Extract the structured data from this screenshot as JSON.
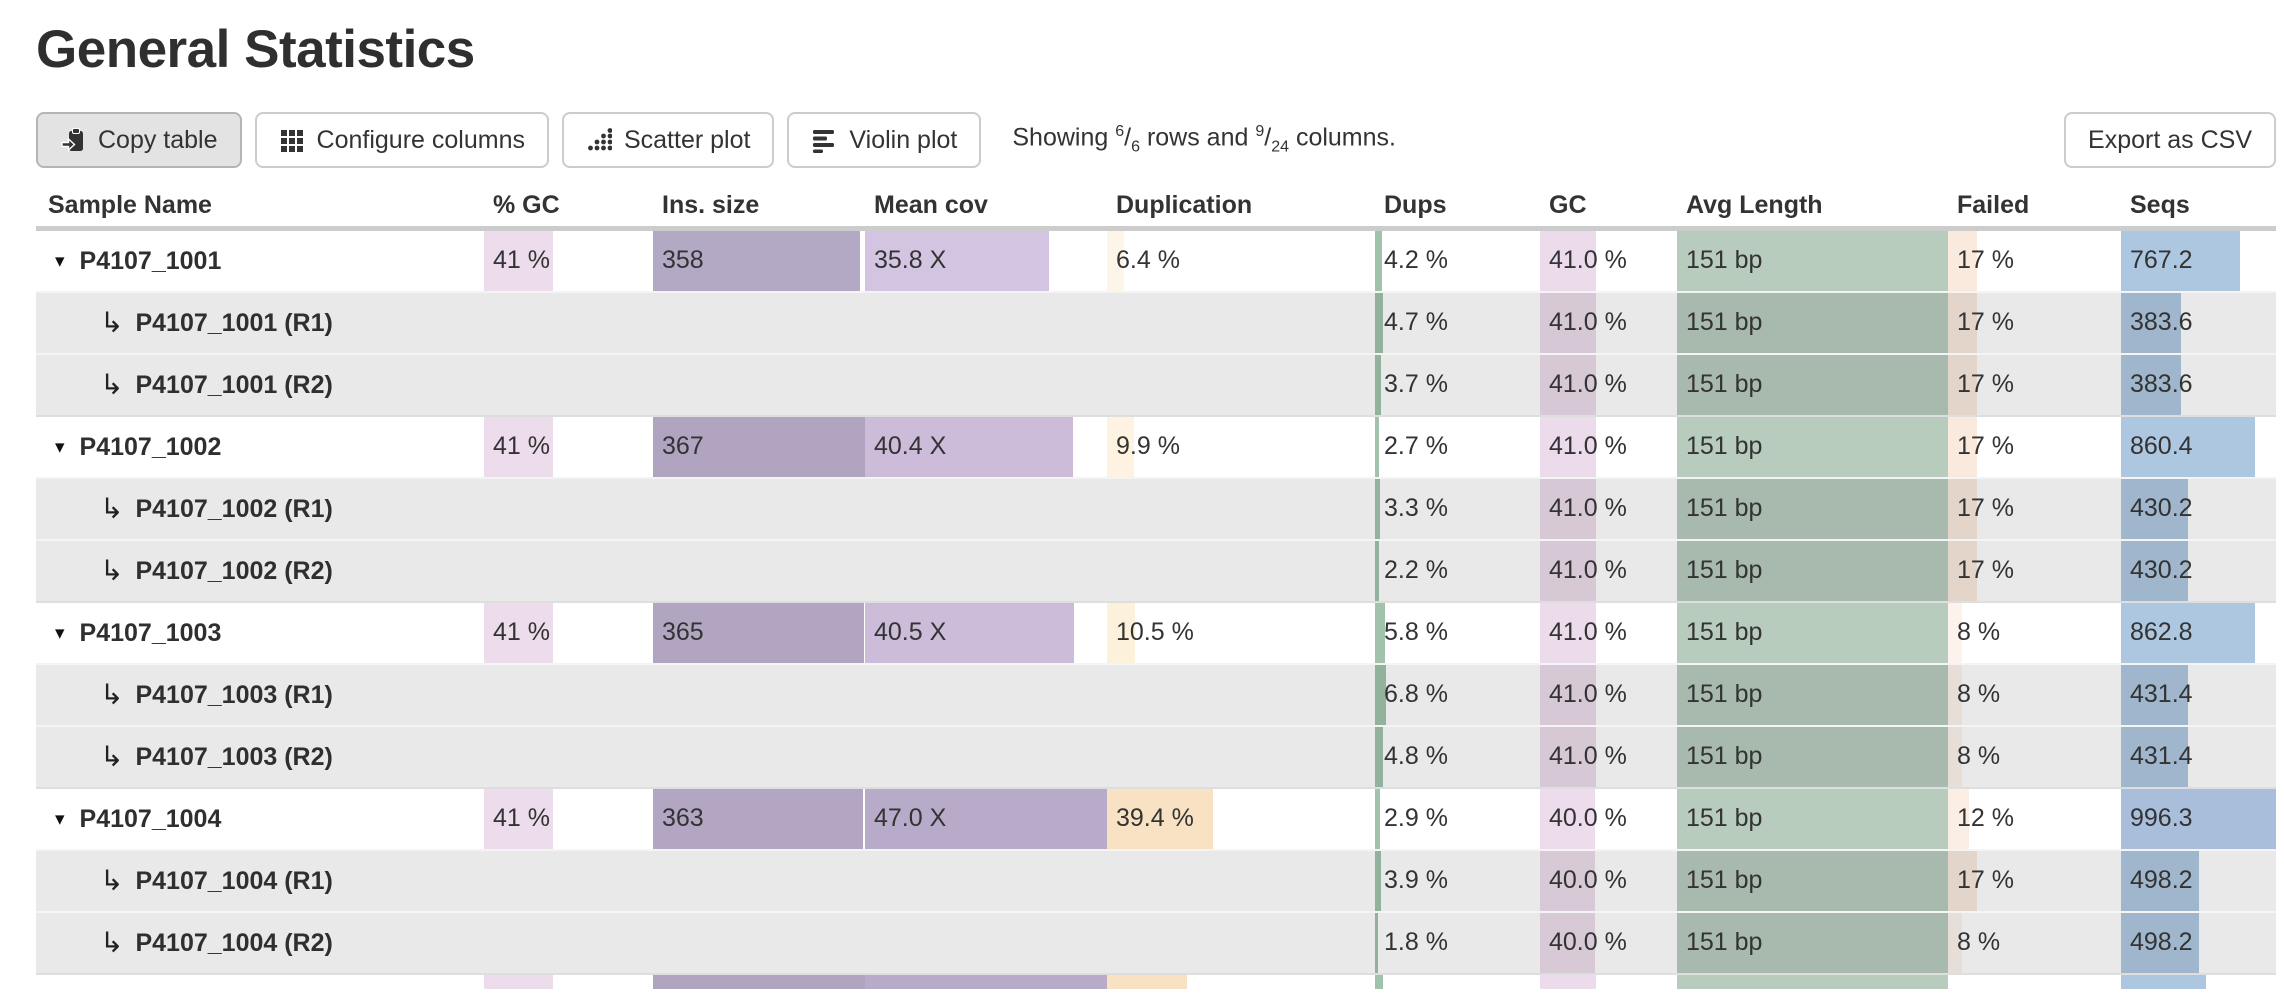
{
  "page": {
    "title": "General Statistics"
  },
  "toolbar": {
    "buttons": [
      {
        "id": "copy-table",
        "label": "Copy table",
        "icon": "clipboard-paste-icon",
        "active": true
      },
      {
        "id": "configure-columns",
        "label": "Configure columns",
        "icon": "grid-icon",
        "active": false
      },
      {
        "id": "scatter-plot",
        "label": "Scatter plot",
        "icon": "dot-chart-icon",
        "active": false
      },
      {
        "id": "violin-plot",
        "label": "Violin plot",
        "icon": "violin-bars-icon",
        "active": false
      }
    ],
    "export_label": "Export as CSV",
    "showing": {
      "prefix": "Showing ",
      "rows_shown": "6",
      "rows_total": "6",
      "mid": " rows and ",
      "cols_shown": "9",
      "cols_total": "24",
      "suffix": " columns."
    }
  },
  "table": {
    "columns": [
      {
        "key": "sample",
        "label": "Sample Name"
      },
      {
        "key": "pct_gc",
        "label": "% GC"
      },
      {
        "key": "ins_size",
        "label": "Ins. size"
      },
      {
        "key": "mean_cov",
        "label": "Mean cov"
      },
      {
        "key": "duplication",
        "label": "Duplication"
      },
      {
        "key": "dups",
        "label": "Dups"
      },
      {
        "key": "gc",
        "label": "GC"
      },
      {
        "key": "avg_length",
        "label": "Avg Length"
      },
      {
        "key": "failed",
        "label": "Failed"
      },
      {
        "key": "seqs",
        "label": "Seqs"
      }
    ],
    "rows": [
      {
        "name": "P4107_1001",
        "type": "main",
        "cells": [
          {
            "t": "41 %",
            "f": 0.41,
            "c": "#ecdcec"
          },
          {
            "t": "358",
            "f": 0.975,
            "c": "#b4a9c4"
          },
          {
            "t": "35.8 X",
            "f": 0.762,
            "c": "#d3c5e1"
          },
          {
            "t": "6.4 %",
            "f": 0.064,
            "c": "#fdf6e8"
          },
          {
            "t": "4.2 %",
            "f": 0.042,
            "c": "#a1c3ac"
          },
          {
            "t": "41.0 %",
            "f": 0.41,
            "c": "#ecdbeb"
          },
          {
            "t": "151 bp",
            "f": 1,
            "c": "#b7ccbd"
          },
          {
            "t": "17 %",
            "f": 0.17,
            "c": "#fae9dd"
          },
          {
            "t": "767.2",
            "f": 0.77,
            "c": "#aec7e1"
          }
        ]
      },
      {
        "name": "P4107_1001 (R1)",
        "type": "sub",
        "cells": [
          null,
          null,
          null,
          null,
          {
            "t": "4.7 %",
            "f": 0.047,
            "c": "#a1c3ac"
          },
          {
            "t": "41.0 %",
            "f": 0.41,
            "c": "#ecdbeb"
          },
          {
            "t": "151 bp",
            "f": 1,
            "c": "#b7ccbd"
          },
          {
            "t": "17 %",
            "f": 0.17,
            "c": "#fae9dd"
          },
          {
            "t": "383.6",
            "f": 0.385,
            "c": "#aec7e1"
          }
        ]
      },
      {
        "name": "P4107_1001 (R2)",
        "type": "sub",
        "cells": [
          null,
          null,
          null,
          null,
          {
            "t": "3.7 %",
            "f": 0.037,
            "c": "#a1c3ac"
          },
          {
            "t": "41.0 %",
            "f": 0.41,
            "c": "#ecdbeb"
          },
          {
            "t": "151 bp",
            "f": 1,
            "c": "#b7ccbd"
          },
          {
            "t": "17 %",
            "f": 0.17,
            "c": "#fae9dd"
          },
          {
            "t": "383.6",
            "f": 0.385,
            "c": "#aec7e1"
          }
        ]
      },
      {
        "name": "P4107_1002",
        "type": "main",
        "cells": [
          {
            "t": "41 %",
            "f": 0.41,
            "c": "#ecdcec"
          },
          {
            "t": "367",
            "f": 1,
            "c": "#b0a4c0"
          },
          {
            "t": "40.4 X",
            "f": 0.86,
            "c": "#ccbbd9"
          },
          {
            "t": "9.9 %",
            "f": 0.099,
            "c": "#fdf3e0"
          },
          {
            "t": "2.7 %",
            "f": 0.027,
            "c": "#a1c3ac"
          },
          {
            "t": "41.0 %",
            "f": 0.41,
            "c": "#ecdbeb"
          },
          {
            "t": "151 bp",
            "f": 1,
            "c": "#b7ccbd"
          },
          {
            "t": "17 %",
            "f": 0.17,
            "c": "#fae9dd"
          },
          {
            "t": "860.4",
            "f": 0.864,
            "c": "#aec7e1"
          }
        ]
      },
      {
        "name": "P4107_1002 (R1)",
        "type": "sub",
        "cells": [
          null,
          null,
          null,
          null,
          {
            "t": "3.3 %",
            "f": 0.033,
            "c": "#a1c3ac"
          },
          {
            "t": "41.0 %",
            "f": 0.41,
            "c": "#ecdbeb"
          },
          {
            "t": "151 bp",
            "f": 1,
            "c": "#b7ccbd"
          },
          {
            "t": "17 %",
            "f": 0.17,
            "c": "#fae9dd"
          },
          {
            "t": "430.2",
            "f": 0.432,
            "c": "#aec7e1"
          }
        ]
      },
      {
        "name": "P4107_1002 (R2)",
        "type": "sub",
        "cells": [
          null,
          null,
          null,
          null,
          {
            "t": "2.2 %",
            "f": 0.022,
            "c": "#a1c3ac"
          },
          {
            "t": "41.0 %",
            "f": 0.41,
            "c": "#ecdbeb"
          },
          {
            "t": "151 bp",
            "f": 1,
            "c": "#b7ccbd"
          },
          {
            "t": "17 %",
            "f": 0.17,
            "c": "#fae9dd"
          },
          {
            "t": "430.2",
            "f": 0.432,
            "c": "#aec7e1"
          }
        ]
      },
      {
        "name": "P4107_1003",
        "type": "main",
        "cells": [
          {
            "t": "41 %",
            "f": 0.41,
            "c": "#ecdcec"
          },
          {
            "t": "365",
            "f": 0.995,
            "c": "#b1a5c1"
          },
          {
            "t": "40.5 X",
            "f": 0.862,
            "c": "#ccbbd9"
          },
          {
            "t": "10.5 %",
            "f": 0.105,
            "c": "#fcf1da"
          },
          {
            "t": "5.8 %",
            "f": 0.058,
            "c": "#a1c3ac"
          },
          {
            "t": "41.0 %",
            "f": 0.41,
            "c": "#ecdbeb"
          },
          {
            "t": "151 bp",
            "f": 1,
            "c": "#b7ccbd"
          },
          {
            "t": "8 %",
            "f": 0.08,
            "c": "#fdf3ec"
          },
          {
            "t": "862.8",
            "f": 0.866,
            "c": "#aec7e1"
          }
        ]
      },
      {
        "name": "P4107_1003 (R1)",
        "type": "sub",
        "cells": [
          null,
          null,
          null,
          null,
          {
            "t": "6.8 %",
            "f": 0.068,
            "c": "#a1c3ac"
          },
          {
            "t": "41.0 %",
            "f": 0.41,
            "c": "#ecdbeb"
          },
          {
            "t": "151 bp",
            "f": 1,
            "c": "#b7ccbd"
          },
          {
            "t": "8 %",
            "f": 0.08,
            "c": "#fdf3ec"
          },
          {
            "t": "431.4",
            "f": 0.433,
            "c": "#aec7e1"
          }
        ]
      },
      {
        "name": "P4107_1003 (R2)",
        "type": "sub",
        "cells": [
          null,
          null,
          null,
          null,
          {
            "t": "4.8 %",
            "f": 0.048,
            "c": "#a1c3ac"
          },
          {
            "t": "41.0 %",
            "f": 0.41,
            "c": "#ecdbeb"
          },
          {
            "t": "151 bp",
            "f": 1,
            "c": "#b7ccbd"
          },
          {
            "t": "8 %",
            "f": 0.08,
            "c": "#fdf3ec"
          },
          {
            "t": "431.4",
            "f": 0.433,
            "c": "#aec7e1"
          }
        ]
      },
      {
        "name": "P4107_1004",
        "type": "main",
        "cells": [
          {
            "t": "41 %",
            "f": 0.41,
            "c": "#ecdcec"
          },
          {
            "t": "363",
            "f": 0.989,
            "c": "#b2a6c2"
          },
          {
            "t": "47.0 X",
            "f": 1,
            "c": "#b8aac9"
          },
          {
            "t": "39.4 %",
            "f": 0.394,
            "c": "#f8e2c3"
          },
          {
            "t": "2.9 %",
            "f": 0.029,
            "c": "#a1c3ac"
          },
          {
            "t": "40.0 %",
            "f": 0.4,
            "c": "#eddcec"
          },
          {
            "t": "151 bp",
            "f": 1,
            "c": "#b7ccbd"
          },
          {
            "t": "12 %",
            "f": 0.12,
            "c": "#fbeee4"
          },
          {
            "t": "996.3",
            "f": 1,
            "c": "#a8bedb"
          }
        ]
      },
      {
        "name": "P4107_1004 (R1)",
        "type": "sub",
        "cells": [
          null,
          null,
          null,
          null,
          {
            "t": "3.9 %",
            "f": 0.039,
            "c": "#a1c3ac"
          },
          {
            "t": "40.0 %",
            "f": 0.4,
            "c": "#eddcec"
          },
          {
            "t": "151 bp",
            "f": 1,
            "c": "#b7ccbd"
          },
          {
            "t": "17 %",
            "f": 0.17,
            "c": "#fae9dd"
          },
          {
            "t": "498.2",
            "f": 0.5,
            "c": "#aec7e1"
          }
        ]
      },
      {
        "name": "P4107_1004 (R2)",
        "type": "sub",
        "cells": [
          null,
          null,
          null,
          null,
          {
            "t": "1.8 %",
            "f": 0.018,
            "c": "#a1c3ac"
          },
          {
            "t": "40.0 %",
            "f": 0.4,
            "c": "#eddcec"
          },
          {
            "t": "151 bp",
            "f": 1,
            "c": "#b7ccbd"
          },
          {
            "t": "8 %",
            "f": 0.08,
            "c": "#fdf3ec"
          },
          {
            "t": "498.2",
            "f": 0.5,
            "c": "#aec7e1"
          }
        ]
      }
    ],
    "partial_row": {
      "cells": [
        {
          "f": 0.41,
          "c": "#ecdcec"
        },
        {
          "f": 1,
          "c": "#b0a4c0"
        },
        {
          "f": 1,
          "c": "#b8aac9"
        },
        {
          "f": 0.3,
          "c": "#f8e2c3"
        },
        {
          "f": 0.05,
          "c": "#a1c3ac"
        },
        {
          "f": 0.41,
          "c": "#ecdbeb"
        },
        {
          "f": 1,
          "c": "#b7ccbd"
        },
        null,
        {
          "f": 0.55,
          "c": "#aec7e1"
        }
      ]
    }
  }
}
